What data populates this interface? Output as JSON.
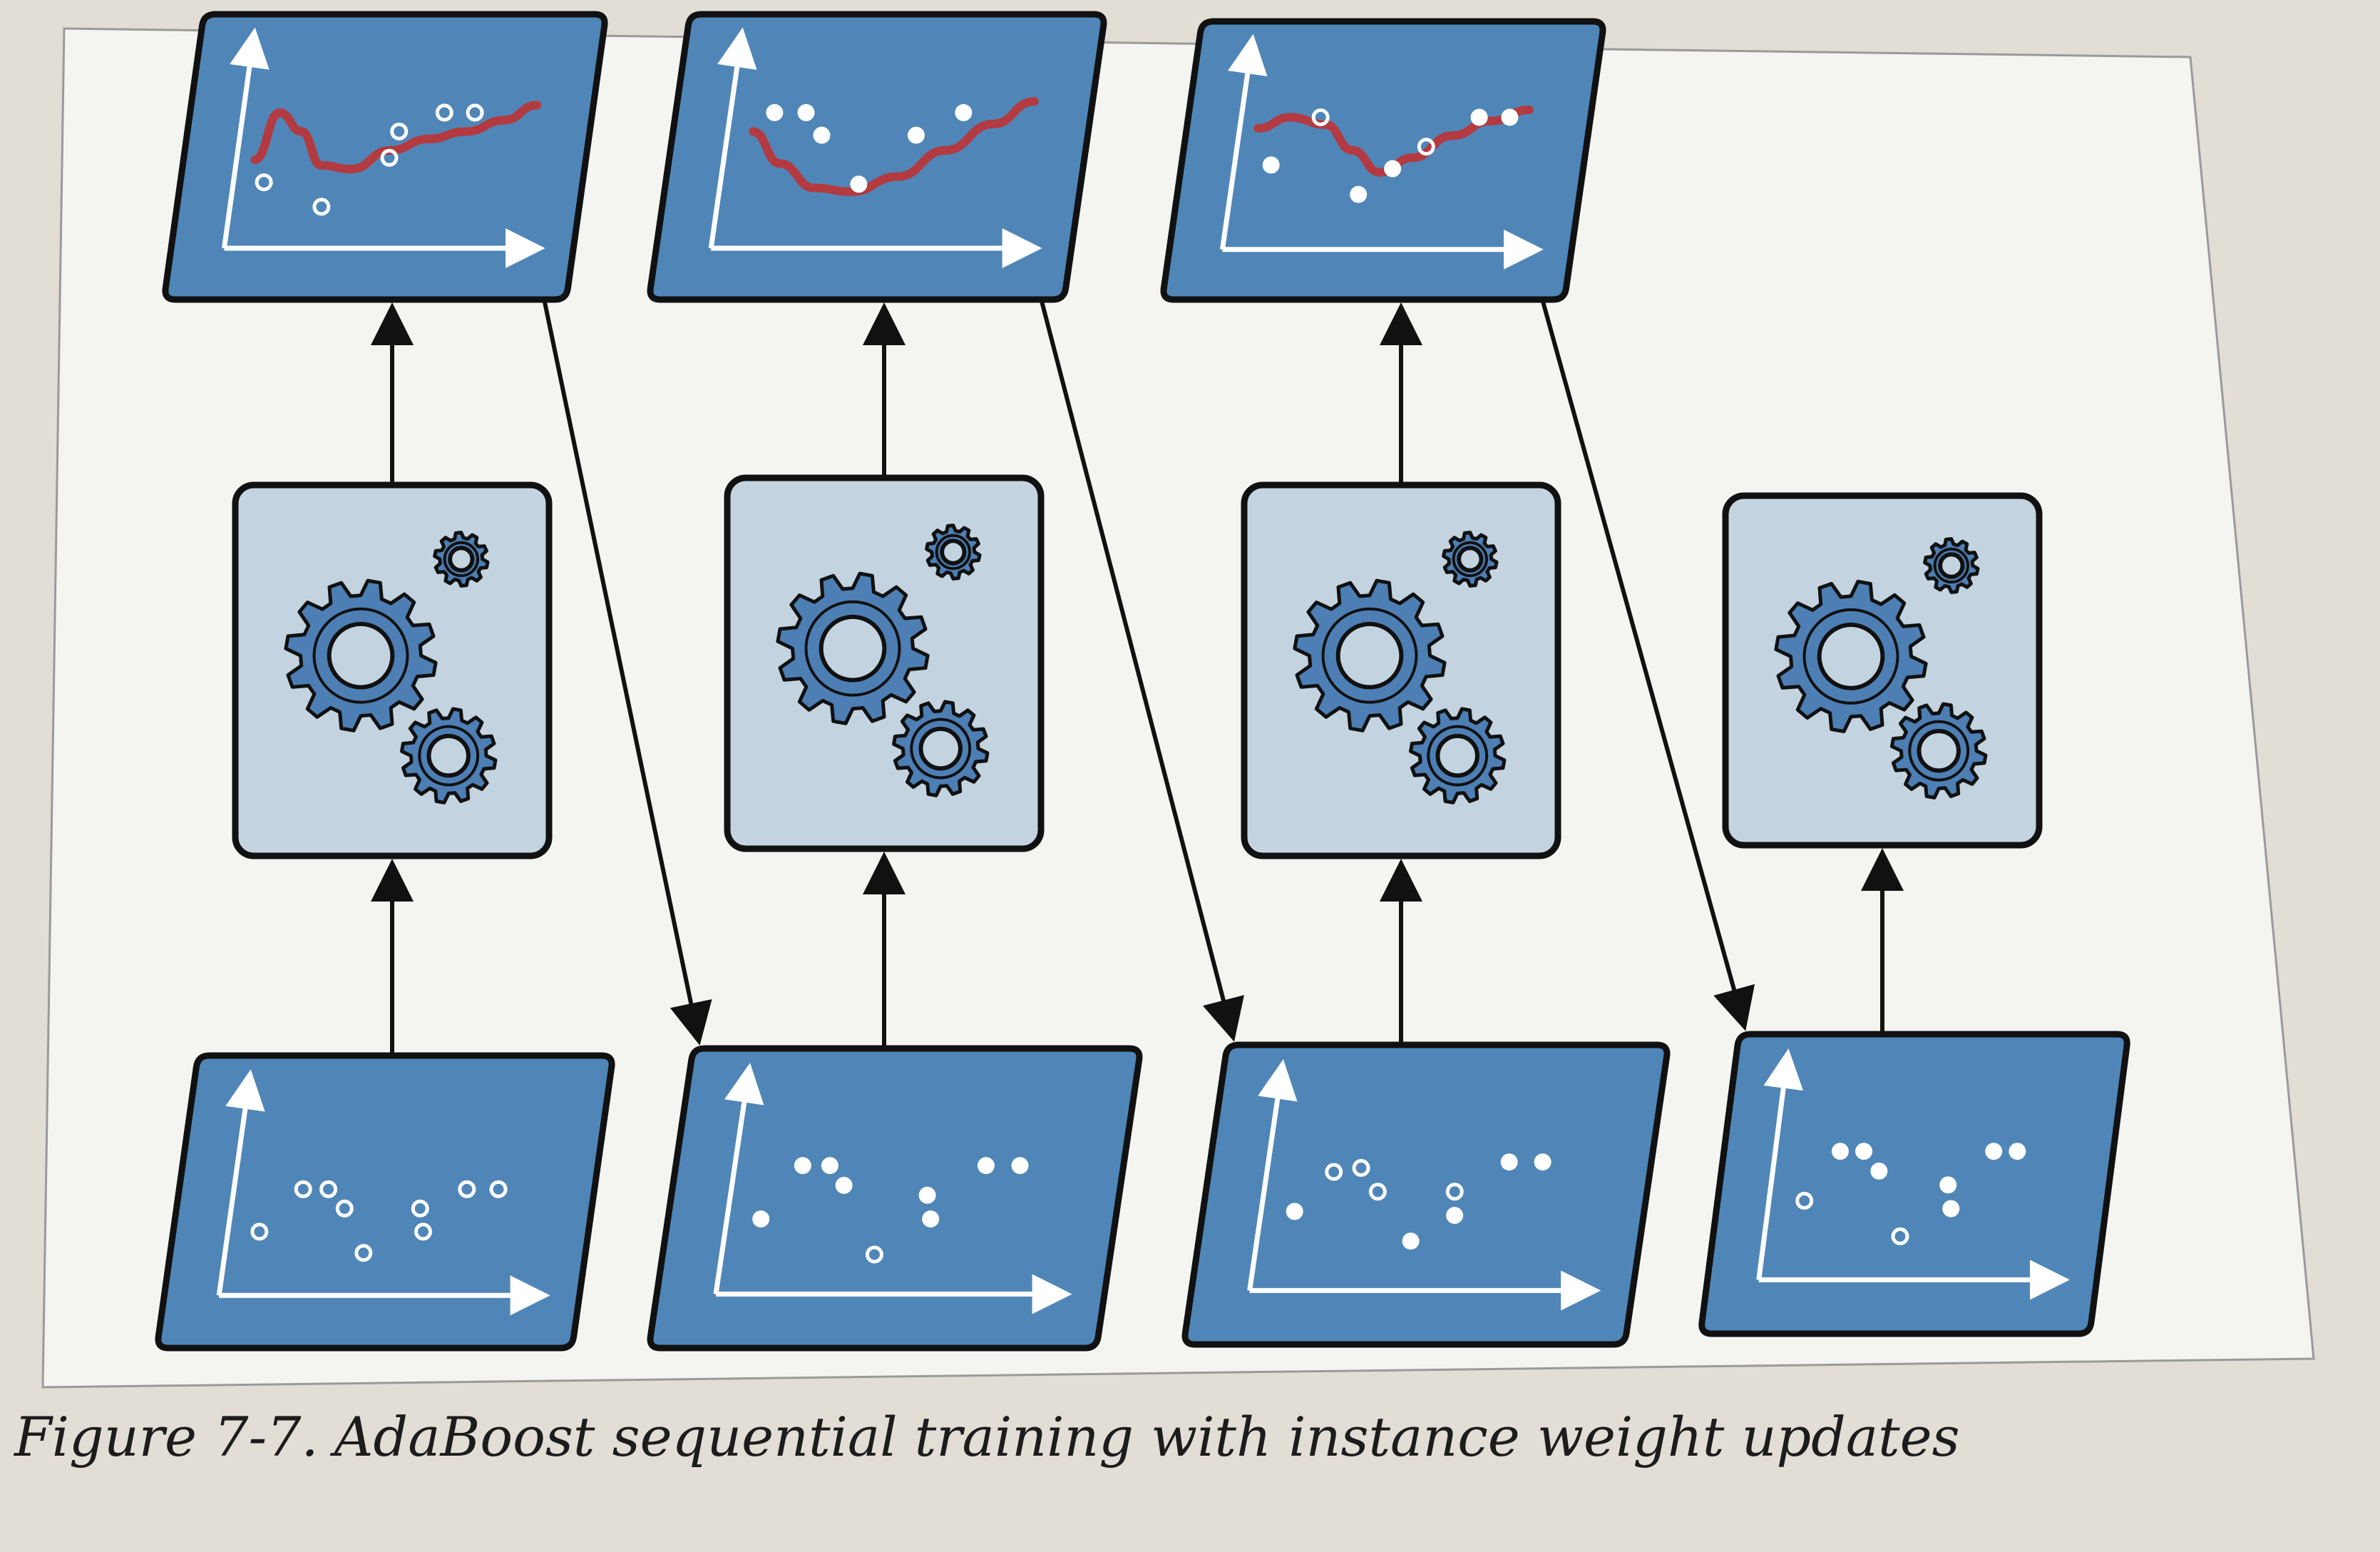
{
  "figure": {
    "label": "Figure 7-7.",
    "title": "AdaBoost sequential training with instance weight updates"
  },
  "colors": {
    "page": "#e6e3de",
    "frame": "#f5f5f2",
    "panel_dark": "#4f86b7",
    "panel_light": "#c3d4e0",
    "gear": "#4d7fb4",
    "outline": "#111111",
    "curve": "#b23a40",
    "axis": "#ffffff"
  },
  "columns": [
    {
      "output_panel": {
        "present": true,
        "curve": [
          [
            0.06,
            0.47
          ],
          [
            0.12,
            0.72
          ],
          [
            0.2,
            0.62
          ],
          [
            0.28,
            0.44
          ],
          [
            0.38,
            0.42
          ],
          [
            0.5,
            0.52
          ],
          [
            0.62,
            0.58
          ],
          [
            0.74,
            0.62
          ],
          [
            0.86,
            0.68
          ],
          [
            0.96,
            0.76
          ]
        ],
        "points": [
          {
            "x": 0.1,
            "y": 0.35,
            "filled": false
          },
          {
            "x": 0.3,
            "y": 0.22,
            "filled": false
          },
          {
            "x": 0.5,
            "y": 0.48,
            "filled": false
          },
          {
            "x": 0.52,
            "y": 0.62,
            "filled": false
          },
          {
            "x": 0.66,
            "y": 0.72,
            "filled": false
          },
          {
            "x": 0.76,
            "y": 0.72,
            "filled": false
          }
        ]
      },
      "predictor_icon": "gears-icon",
      "training_set": {
        "points": [
          {
            "x": 0.1,
            "y": 0.33,
            "filled": false
          },
          {
            "x": 0.22,
            "y": 0.55,
            "filled": false
          },
          {
            "x": 0.3,
            "y": 0.55,
            "filled": false
          },
          {
            "x": 0.36,
            "y": 0.45,
            "filled": false
          },
          {
            "x": 0.44,
            "y": 0.22,
            "filled": false
          },
          {
            "x": 0.6,
            "y": 0.45,
            "filled": false
          },
          {
            "x": 0.62,
            "y": 0.33,
            "filled": false
          },
          {
            "x": 0.74,
            "y": 0.55,
            "filled": false
          },
          {
            "x": 0.84,
            "y": 0.55,
            "filled": false
          }
        ]
      }
    },
    {
      "output_panel": {
        "present": true,
        "curve": [
          [
            0.08,
            0.62
          ],
          [
            0.18,
            0.45
          ],
          [
            0.3,
            0.32
          ],
          [
            0.42,
            0.3
          ],
          [
            0.56,
            0.38
          ],
          [
            0.7,
            0.52
          ],
          [
            0.84,
            0.66
          ],
          [
            0.96,
            0.78
          ]
        ],
        "points": [
          {
            "x": 0.14,
            "y": 0.72,
            "filled": true
          },
          {
            "x": 0.24,
            "y": 0.72,
            "filled": true
          },
          {
            "x": 0.3,
            "y": 0.6,
            "filled": true
          },
          {
            "x": 0.44,
            "y": 0.34,
            "filled": true
          },
          {
            "x": 0.6,
            "y": 0.6,
            "filled": true
          },
          {
            "x": 0.74,
            "y": 0.72,
            "filled": true
          }
        ]
      },
      "predictor_icon": "gears-icon",
      "training_set": {
        "points": [
          {
            "x": 0.1,
            "y": 0.38,
            "filled": true
          },
          {
            "x": 0.2,
            "y": 0.65,
            "filled": true
          },
          {
            "x": 0.28,
            "y": 0.65,
            "filled": true
          },
          {
            "x": 0.33,
            "y": 0.55,
            "filled": true
          },
          {
            "x": 0.45,
            "y": 0.2,
            "filled": false
          },
          {
            "x": 0.58,
            "y": 0.5,
            "filled": true
          },
          {
            "x": 0.6,
            "y": 0.38,
            "filled": true
          },
          {
            "x": 0.74,
            "y": 0.65,
            "filled": true
          },
          {
            "x": 0.84,
            "y": 0.65,
            "filled": true
          }
        ]
      }
    },
    {
      "output_panel": {
        "present": true,
        "curve": [
          [
            0.06,
            0.66
          ],
          [
            0.16,
            0.72
          ],
          [
            0.28,
            0.68
          ],
          [
            0.38,
            0.54
          ],
          [
            0.48,
            0.42
          ],
          [
            0.58,
            0.5
          ],
          [
            0.7,
            0.62
          ],
          [
            0.82,
            0.7
          ],
          [
            0.94,
            0.76
          ]
        ],
        "points": [
          {
            "x": 0.12,
            "y": 0.46,
            "filled": true
          },
          {
            "x": 0.26,
            "y": 0.72,
            "filled": false
          },
          {
            "x": 0.42,
            "y": 0.3,
            "filled": true
          },
          {
            "x": 0.52,
            "y": 0.44,
            "filled": true
          },
          {
            "x": 0.62,
            "y": 0.56,
            "filled": false
          },
          {
            "x": 0.78,
            "y": 0.72,
            "filled": true
          },
          {
            "x": 0.88,
            "y": 0.72,
            "filled": true
          }
        ]
      },
      "predictor_icon": "gears-icon",
      "training_set": {
        "points": [
          {
            "x": 0.1,
            "y": 0.4,
            "filled": true
          },
          {
            "x": 0.2,
            "y": 0.6,
            "filled": false
          },
          {
            "x": 0.28,
            "y": 0.62,
            "filled": false
          },
          {
            "x": 0.34,
            "y": 0.5,
            "filled": false
          },
          {
            "x": 0.46,
            "y": 0.25,
            "filled": true
          },
          {
            "x": 0.57,
            "y": 0.5,
            "filled": false
          },
          {
            "x": 0.58,
            "y": 0.38,
            "filled": true
          },
          {
            "x": 0.72,
            "y": 0.65,
            "filled": true
          },
          {
            "x": 0.82,
            "y": 0.65,
            "filled": true
          }
        ]
      }
    },
    {
      "output_panel": {
        "present": false
      },
      "predictor_icon": "gears-icon",
      "training_set": {
        "points": [
          {
            "x": 0.12,
            "y": 0.4,
            "filled": false
          },
          {
            "x": 0.22,
            "y": 0.65,
            "filled": true
          },
          {
            "x": 0.3,
            "y": 0.65,
            "filled": true
          },
          {
            "x": 0.36,
            "y": 0.55,
            "filled": true
          },
          {
            "x": 0.46,
            "y": 0.22,
            "filled": false
          },
          {
            "x": 0.6,
            "y": 0.48,
            "filled": true
          },
          {
            "x": 0.62,
            "y": 0.36,
            "filled": true
          },
          {
            "x": 0.74,
            "y": 0.65,
            "filled": true
          },
          {
            "x": 0.82,
            "y": 0.65,
            "filled": true
          }
        ]
      }
    }
  ]
}
